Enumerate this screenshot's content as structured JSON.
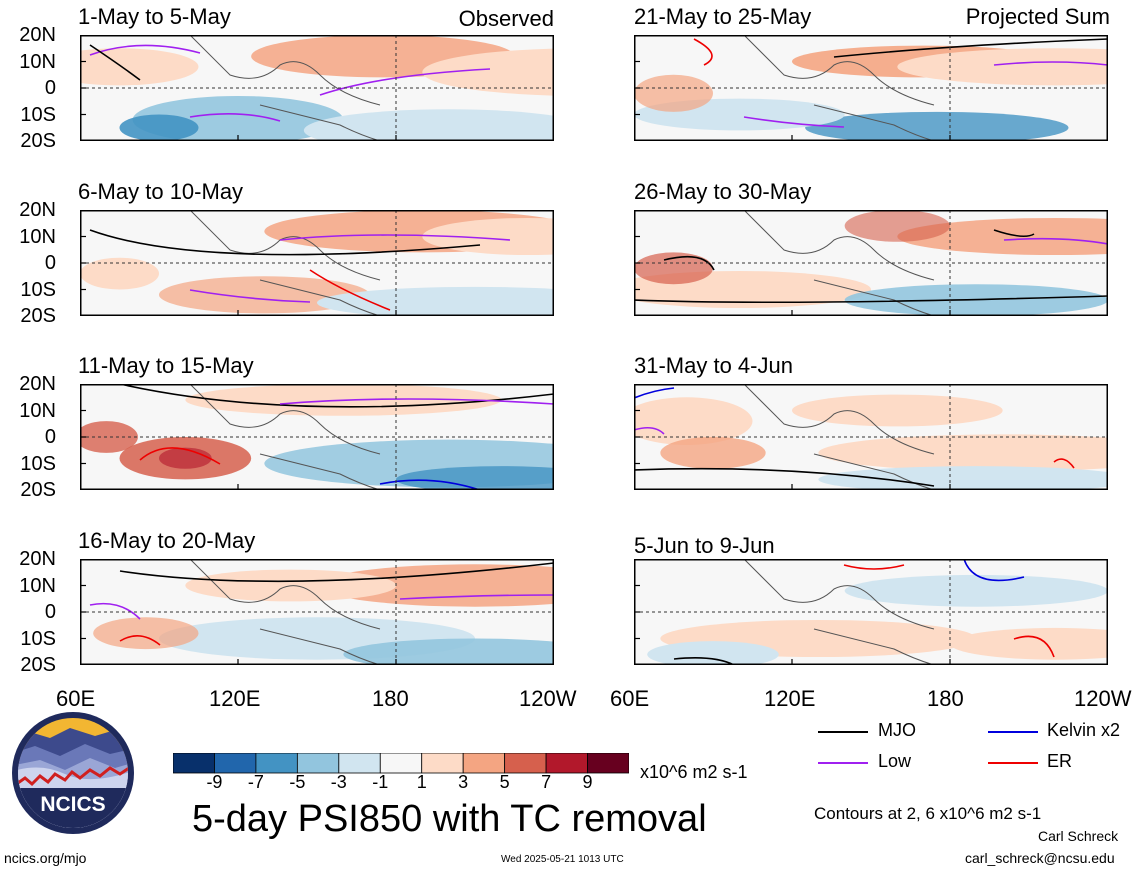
{
  "chart_data": {
    "type": "heatmap",
    "title": "5-day PSI850 with TC removal",
    "units": "x10^6 m2 s-1",
    "x_ticks": [
      "60E",
      "120E",
      "180",
      "120W"
    ],
    "y_ticks": [
      "20N",
      "10N",
      "0",
      "10S",
      "20S"
    ],
    "columns": [
      {
        "label": "Observed",
        "panels": [
          "1-May to 5-May",
          "6-May to 10-May",
          "11-May to 15-May",
          "16-May to 20-May"
        ]
      },
      {
        "label": "Projected Sum",
        "panels": [
          "21-May to 25-May",
          "26-May to 30-May",
          "31-May to 4-Jun",
          "5-Jun to 9-Jun"
        ]
      }
    ],
    "colorbar": {
      "labels": [
        "-9",
        "-7",
        "-5",
        "-3",
        "-1",
        "1",
        "3",
        "5",
        "7",
        "9"
      ],
      "colors": [
        "#08306b",
        "#2166ac",
        "#4393c3",
        "#92c5de",
        "#d1e5f0",
        "#f7f7f7",
        "#fddbc7",
        "#f4a582",
        "#d6604d",
        "#b2182b",
        "#67001f"
      ]
    },
    "contour_legend": [
      {
        "name": "MJO",
        "color": "#000000"
      },
      {
        "name": "Kelvin x2",
        "color": "#0000dd"
      },
      {
        "name": "Low",
        "color": "#a020f0"
      },
      {
        "name": "ER",
        "color": "#ee0000"
      }
    ],
    "contour_note": "Contours at 2, 6 x10^6 m2 s-1"
  },
  "footer": {
    "logo_text": "NCICS",
    "url": "ncics.org/mjo",
    "timestamp": "Wed 2025-05-21 1013 UTC",
    "author": "Carl Schreck",
    "email": "carl_schreck@ncsu.edu"
  }
}
